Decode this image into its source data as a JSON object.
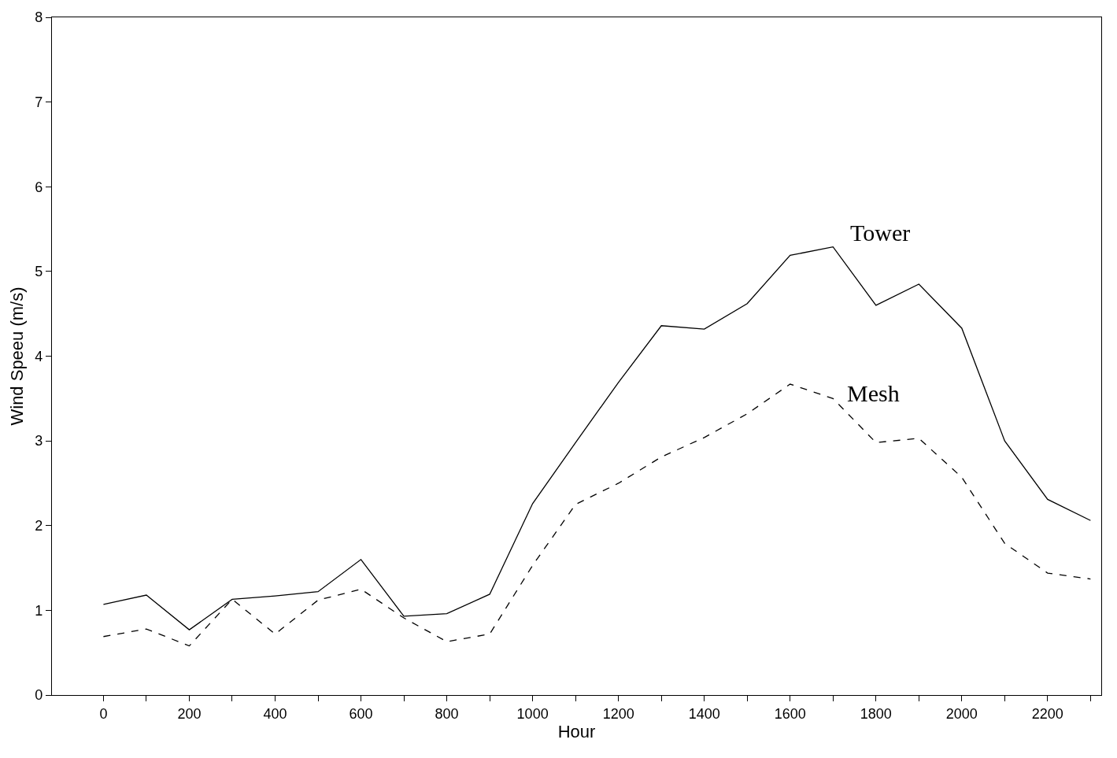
{
  "chart_data": {
    "type": "line",
    "xlabel": "Hour",
    "ylabel": "Wind Speeu (m/s)",
    "x": [
      0,
      100,
      200,
      300,
      400,
      500,
      600,
      700,
      800,
      900,
      1000,
      1100,
      1200,
      1300,
      1400,
      1500,
      1600,
      1700,
      1800,
      1900,
      2000,
      2100,
      2200,
      2300
    ],
    "series": [
      {
        "name": "Tower",
        "color": "#000000",
        "line_style": "solid",
        "values": [
          1.07,
          1.18,
          0.77,
          1.13,
          1.17,
          1.22,
          1.6,
          0.93,
          0.96,
          1.19,
          2.26,
          2.98,
          3.69,
          4.36,
          4.32,
          4.62,
          5.19,
          5.29,
          4.6,
          4.85,
          4.33,
          3.0,
          2.31,
          2.06
        ]
      },
      {
        "name": "Mesh",
        "color": "#000000",
        "line_style": "dashed",
        "values": [
          0.69,
          0.78,
          0.58,
          1.13,
          0.72,
          1.12,
          1.25,
          0.91,
          0.63,
          0.72,
          1.53,
          2.25,
          2.5,
          2.81,
          3.04,
          3.32,
          3.67,
          3.5,
          2.98,
          3.03,
          2.57,
          1.79,
          1.44,
          1.37
        ]
      }
    ],
    "xlim": [
      -120,
      2325
    ],
    "xticks": [
      0,
      {
        "value": 100,
        "label": null
      },
      200,
      {
        "value": 300,
        "label": null
      },
      400,
      {
        "value": 500,
        "label": null
      },
      600,
      {
        "value": 700,
        "label": null
      },
      800,
      {
        "value": 900,
        "label": null
      },
      1000,
      {
        "value": 1100,
        "label": null
      },
      1200,
      {
        "value": 1300,
        "label": null
      },
      1400,
      {
        "value": 1500,
        "label": null
      },
      1600,
      {
        "value": 1700,
        "label": null
      },
      1800,
      {
        "value": 1900,
        "label": null
      },
      2000,
      {
        "value": 2100,
        "label": null
      },
      2200,
      {
        "value": 2300,
        "label": null
      }
    ],
    "ylim": [
      0,
      8
    ],
    "yticks": [
      0,
      1,
      2,
      3,
      4,
      5,
      6,
      7,
      8
    ],
    "legend": false,
    "marker": "none"
  }
}
